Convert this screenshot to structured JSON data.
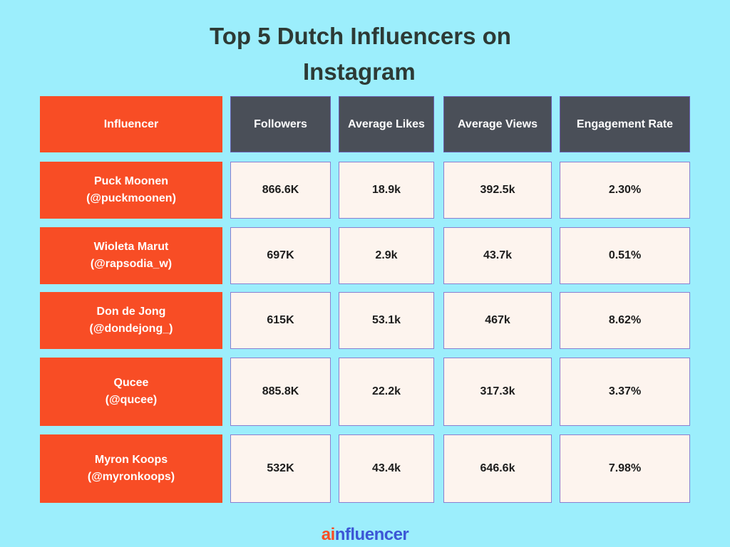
{
  "title": {
    "line1": "Top 5 Dutch Influencers on",
    "line2": "Instagram"
  },
  "chart_data": {
    "type": "table",
    "columns": [
      "Influencer",
      "Followers",
      "Average Likes",
      "Average Views",
      "Engagement Rate"
    ],
    "rows": [
      {
        "name": "Puck Moonen",
        "handle": "(@puckmoonen)",
        "followers": "866.6K",
        "likes": "18.9k",
        "views": "392.5k",
        "engagement": "2.30%"
      },
      {
        "name": "Wioleta Marut",
        "handle": "(@rapsodia_w)",
        "followers": "697K",
        "likes": "2.9k",
        "views": "43.7k",
        "engagement": "0.51%"
      },
      {
        "name": "Don de Jong",
        "handle": "(@dondejong_)",
        "followers": "615K",
        "likes": "53.1k",
        "views": "467k",
        "engagement": "8.62%"
      },
      {
        "name": "Qucee",
        "handle": "(@qucee)",
        "followers": "885.8K",
        "likes": "22.2k",
        "views": "317.3k",
        "engagement": "3.37%"
      },
      {
        "name": "Myron Koops",
        "handle": "(@myronkoops)",
        "followers": "532K",
        "likes": "43.4k",
        "views": "646.6k",
        "engagement": "7.98%"
      }
    ]
  },
  "brand": {
    "logo_accent": "ai",
    "logo_rest": "nfluencer"
  },
  "colors": {
    "background": "#9ceefc",
    "accent": "#f84d25",
    "header": "#4a4f58",
    "cell": "#fdf4ee",
    "brand_blue": "#3b57d6"
  }
}
